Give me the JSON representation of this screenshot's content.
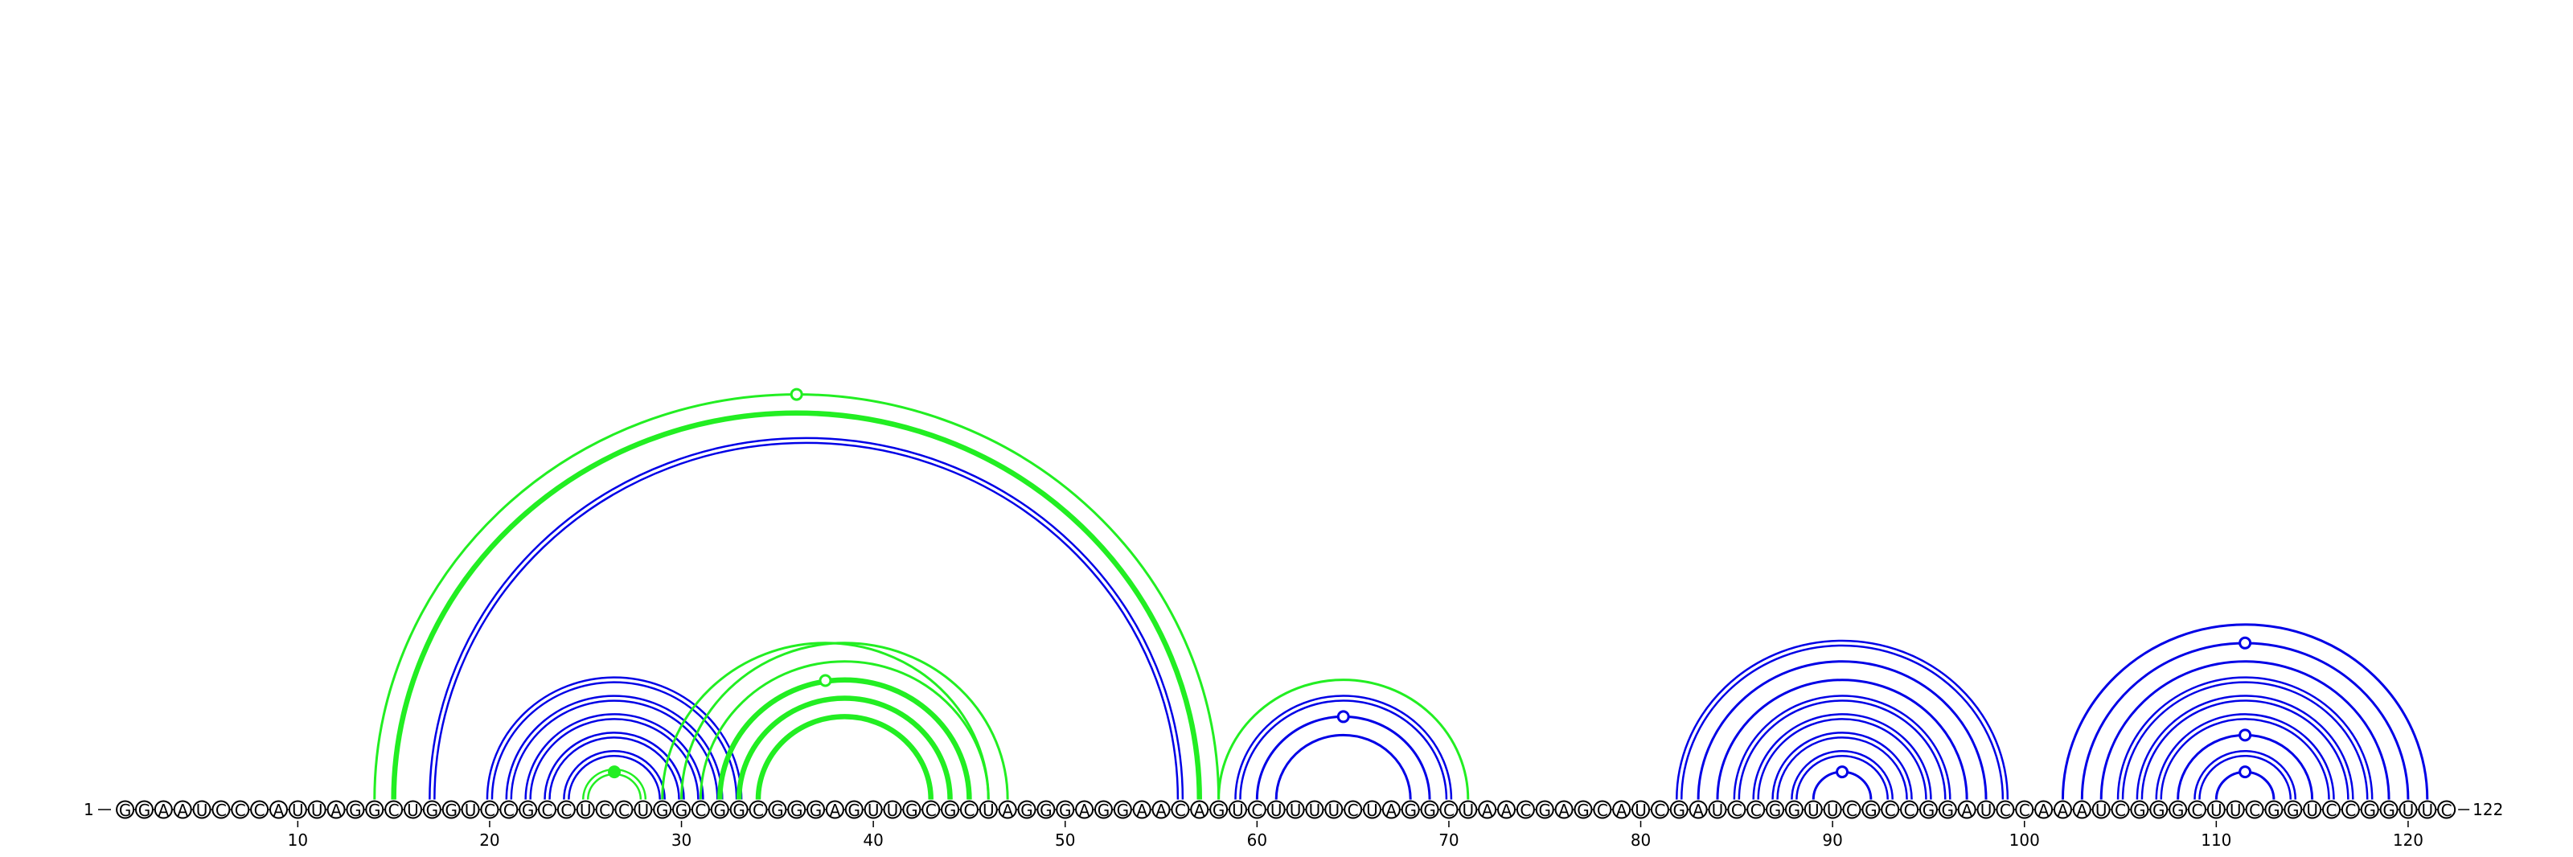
{
  "sequence": "GGAAUCCCAUUAGGCUGGUCCGCCUCCUGGCGGCGGGAGUUGCGCUAGGGAGGAACAGUCUUUUCUAGGCUAACGAGCAUCGAUCCGGUUCGCCGGAUCCAAAUCGGGCUUCGGUCCGGUUC",
  "start_label": "1",
  "end_label": "122",
  "ticks": [
    10,
    20,
    30,
    40,
    50,
    60,
    70,
    80,
    90,
    100,
    110,
    120
  ],
  "colors": {
    "blue": "#0000e6",
    "green": "#22ee22"
  },
  "arcs": [
    {
      "i": 20,
      "j": 33,
      "color": "blue",
      "style": "double"
    },
    {
      "i": 21,
      "j": 32,
      "color": "blue",
      "style": "double"
    },
    {
      "i": 22,
      "j": 31,
      "color": "blue",
      "style": "double"
    },
    {
      "i": 23,
      "j": 30,
      "color": "blue",
      "style": "double"
    },
    {
      "i": 24,
      "j": 29,
      "color": "blue",
      "style": "double"
    },
    {
      "i": 25,
      "j": 28,
      "color": "green",
      "style": "double",
      "marker": "filled"
    },
    {
      "i": 30,
      "j": 47,
      "color": "green",
      "style": "single"
    },
    {
      "i": 31,
      "j": 46,
      "color": "green",
      "style": "single"
    },
    {
      "i": 32,
      "j": 45,
      "color": "green",
      "style": "bold"
    },
    {
      "i": 33,
      "j": 44,
      "color": "green",
      "style": "bold"
    },
    {
      "i": 34,
      "j": 43,
      "color": "green",
      "style": "bold"
    },
    {
      "i": 29,
      "j": 46,
      "color": "green",
      "style": "single",
      "marker": "open",
      "markerHeight": 74
    },
    {
      "i": 14,
      "j": 58,
      "color": "green",
      "style": "single",
      "marker": "open"
    },
    {
      "i": 15,
      "j": 57,
      "color": "green",
      "style": "bold"
    },
    {
      "i": 17,
      "j": 56,
      "color": "blue",
      "style": "double"
    },
    {
      "i": 58,
      "j": 71,
      "color": "green",
      "style": "single"
    },
    {
      "i": 59,
      "j": 70,
      "color": "blue",
      "style": "double"
    },
    {
      "i": 60,
      "j": 69,
      "color": "blue",
      "style": "single",
      "marker": "open"
    },
    {
      "i": 61,
      "j": 68,
      "color": "blue",
      "style": "single"
    },
    {
      "i": 82,
      "j": 99,
      "color": "blue",
      "style": "double"
    },
    {
      "i": 83,
      "j": 98,
      "color": "blue",
      "style": "single"
    },
    {
      "i": 84,
      "j": 97,
      "color": "blue",
      "style": "single"
    },
    {
      "i": 85,
      "j": 96,
      "color": "blue",
      "style": "double"
    },
    {
      "i": 86,
      "j": 95,
      "color": "blue",
      "style": "double"
    },
    {
      "i": 87,
      "j": 94,
      "color": "blue",
      "style": "double"
    },
    {
      "i": 88,
      "j": 93,
      "color": "blue",
      "style": "double"
    },
    {
      "i": 89,
      "j": 92,
      "color": "blue",
      "style": "single",
      "marker": "open"
    },
    {
      "i": 102,
      "j": 121,
      "color": "blue",
      "style": "single"
    },
    {
      "i": 103,
      "j": 120,
      "color": "blue",
      "style": "single",
      "marker": "open"
    },
    {
      "i": 104,
      "j": 119,
      "color": "blue",
      "style": "single"
    },
    {
      "i": 105,
      "j": 118,
      "color": "blue",
      "style": "double"
    },
    {
      "i": 106,
      "j": 117,
      "color": "blue",
      "style": "double"
    },
    {
      "i": 107,
      "j": 116,
      "color": "blue",
      "style": "double"
    },
    {
      "i": 108,
      "j": 115,
      "color": "blue",
      "style": "single",
      "marker": "open"
    },
    {
      "i": 109,
      "j": 114,
      "color": "blue",
      "style": "double"
    },
    {
      "i": 110,
      "j": 113,
      "color": "blue",
      "style": "single",
      "marker": "open"
    }
  ]
}
